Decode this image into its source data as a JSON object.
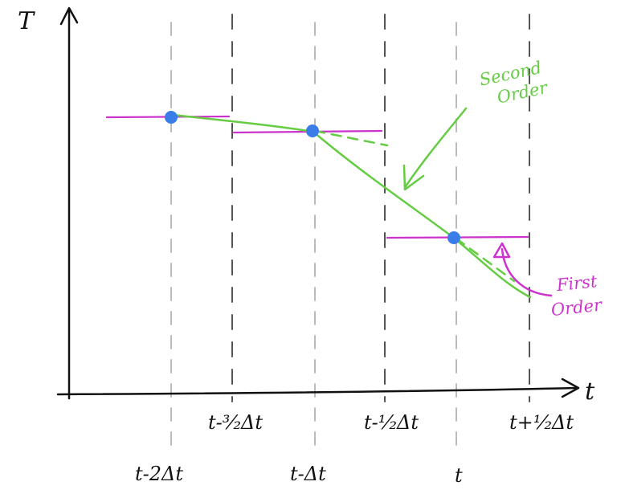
{
  "axes": {
    "y_label": "T",
    "x_label": "t"
  },
  "ticks": {
    "top_row": [
      "t-³⁄₂Δt",
      "t-¹⁄₂Δt",
      "t+¹⁄₂Δt"
    ],
    "bottom_row": [
      "t-2Δt",
      "t-Δt",
      "t"
    ]
  },
  "annotations": {
    "second_order": [
      "Second",
      "Order"
    ],
    "first_order": [
      "First",
      "Order"
    ]
  },
  "colors": {
    "second_order": "#66cc44",
    "first_order": "#cc33cc",
    "points": "#3b7de8",
    "gridline_major": "#555555",
    "gridline_minor": "#bbbbbb"
  }
}
